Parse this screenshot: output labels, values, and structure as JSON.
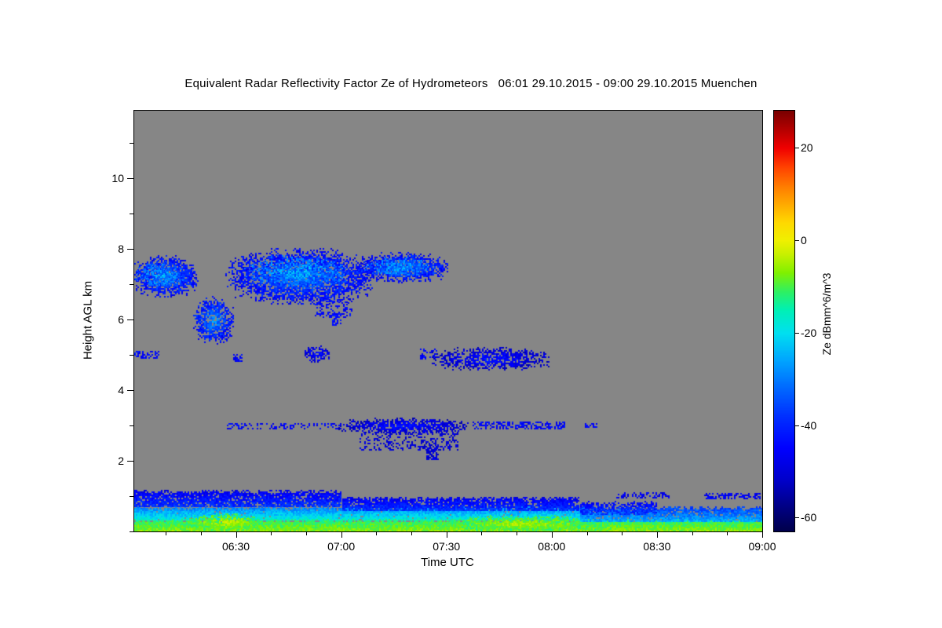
{
  "title": "Equivalent Radar Reflectivity Factor Ze of Hydrometeors   06:01 29.10.2015 - 09:00 29.10.2015 Muenchen",
  "chart_data": {
    "type": "heatmap",
    "title": "Equivalent Radar Reflectivity Factor Ze of Hydrometeors   06:01 29.10.2015 - 09:00 29.10.2015 Muenchen",
    "xlabel": "Time UTC",
    "ylabel": "Height AGL km",
    "colorbar_label": "Ze dBmm^6/m^3",
    "station": "Muenchen",
    "time_start": "06:01 29.10.2015",
    "time_end": "09:00 29.10.2015",
    "x_range_hours": [
      6.017,
      9.0
    ],
    "y_range_km": [
      0,
      11.9
    ],
    "value_range": [
      -63,
      28
    ],
    "background_color": "#868686",
    "x_ticks": [
      {
        "t": 6.5,
        "label": "06:30"
      },
      {
        "t": 7.0,
        "label": "07:00"
      },
      {
        "t": 7.5,
        "label": "07:30"
      },
      {
        "t": 8.0,
        "label": "08:00"
      },
      {
        "t": 8.5,
        "label": "08:30"
      },
      {
        "t": 9.0,
        "label": "09:00"
      }
    ],
    "x_minor_step_min": 10,
    "y_ticks": [
      {
        "z": 2,
        "label": "2"
      },
      {
        "z": 4,
        "label": "4"
      },
      {
        "z": 6,
        "label": "6"
      },
      {
        "z": 8,
        "label": "8"
      },
      {
        "z": 10,
        "label": "10"
      }
    ],
    "y_minor_step_km": 1,
    "colorbar_ticks": [
      {
        "v": 20,
        "label": "20"
      },
      {
        "v": 0,
        "label": "0"
      },
      {
        "v": -20,
        "label": "-20"
      },
      {
        "v": -40,
        "label": "-40"
      },
      {
        "v": -60,
        "label": "-60"
      }
    ],
    "colormap": [
      [
        -63,
        "#00004a"
      ],
      [
        -58,
        "#000080"
      ],
      [
        -52,
        "#0000c8"
      ],
      [
        -45,
        "#0000ff"
      ],
      [
        -38,
        "#0030ff"
      ],
      [
        -32,
        "#0068ff"
      ],
      [
        -26,
        "#00a4ff"
      ],
      [
        -20,
        "#00e0f0"
      ],
      [
        -15,
        "#00f0b4"
      ],
      [
        -11,
        "#30f060"
      ],
      [
        -7,
        "#80f000"
      ],
      [
        -3,
        "#c8f000"
      ],
      [
        0,
        "#f0f000"
      ],
      [
        4,
        "#ffd800"
      ],
      [
        8,
        "#ffa800"
      ],
      [
        12,
        "#ff7800"
      ],
      [
        16,
        "#ff4000"
      ],
      [
        20,
        "#f00000"
      ],
      [
        24,
        "#b40000"
      ],
      [
        28,
        "#7a0000"
      ]
    ],
    "features": [
      {
        "type": "blob",
        "name": "upper-cloud-left",
        "t": [
          6.017,
          6.31
        ],
        "z": [
          6.7,
          7.75
        ],
        "core": -30,
        "edge": -45,
        "density": 0.95,
        "jitter": 5
      },
      {
        "type": "blob",
        "name": "upper-cloud-left-core",
        "t": [
          6.03,
          6.25
        ],
        "z": [
          6.95,
          7.6
        ],
        "core": -24,
        "edge": -34,
        "density": 0.6,
        "jitter": 5
      },
      {
        "type": "speckle",
        "name": "upper-left-dot",
        "t": [
          6.225,
          6.3
        ],
        "z": [
          7.15,
          7.4
        ],
        "v": -40,
        "density": 0.5,
        "jitter": 4
      },
      {
        "type": "blob",
        "name": "teardrop-cloud",
        "t": [
          6.3,
          6.48
        ],
        "z": [
          5.35,
          6.6
        ],
        "core": -27,
        "edge": -45,
        "density": 0.9,
        "jitter": 5
      },
      {
        "type": "blob",
        "name": "main-upper-cloud",
        "t": [
          6.46,
          7.14
        ],
        "z": [
          6.5,
          7.95
        ],
        "core": -30,
        "edge": -46,
        "density": 0.95,
        "jitter": 5
      },
      {
        "type": "blob",
        "name": "main-upper-cloud-core",
        "t": [
          6.55,
          7.02
        ],
        "z": [
          6.95,
          7.8
        ],
        "core": -23,
        "edge": -33,
        "density": 0.55,
        "jitter": 5
      },
      {
        "type": "speckle",
        "name": "cloud-wisps",
        "t": [
          6.87,
          7.05
        ],
        "z": [
          6.05,
          6.6
        ],
        "v": -44,
        "density": 0.3,
        "jitter": 4
      },
      {
        "type": "speckle",
        "name": "wisp-dot",
        "t": [
          6.95,
          7.0
        ],
        "z": [
          5.85,
          6.2
        ],
        "v": -43,
        "density": 0.45,
        "jitter": 3
      },
      {
        "type": "blob",
        "name": "upper-cloud-b",
        "t": [
          7.07,
          7.5
        ],
        "z": [
          7.1,
          7.85
        ],
        "core": -30,
        "edge": -45,
        "density": 0.95,
        "jitter": 5
      },
      {
        "type": "blob",
        "name": "upper-cloud-b-core",
        "t": [
          7.12,
          7.42
        ],
        "z": [
          7.25,
          7.75
        ],
        "core": -25,
        "edge": -33,
        "density": 0.55,
        "jitter": 5
      },
      {
        "type": "speckle",
        "name": "cloud-connector",
        "t": [
          7.0,
          7.1
        ],
        "z": [
          7.3,
          7.5
        ],
        "v": -40,
        "density": 0.5,
        "jitter": 4
      },
      {
        "type": "speckle",
        "name": "5km-left-dots",
        "t": [
          6.017,
          6.13
        ],
        "z": [
          4.9,
          5.15
        ],
        "v": -44,
        "density": 0.45,
        "jitter": 4
      },
      {
        "type": "speckle",
        "name": "5km-dot",
        "t": [
          6.48,
          6.53
        ],
        "z": [
          4.8,
          5.05
        ],
        "v": -45,
        "density": 0.5,
        "jitter": 4
      },
      {
        "type": "blob",
        "name": "5km-blob",
        "t": [
          6.82,
          6.94
        ],
        "z": [
          4.8,
          5.25
        ],
        "core": -42,
        "edge": -50,
        "density": 0.7,
        "jitter": 4
      },
      {
        "type": "speckle",
        "name": "5km-predots",
        "t": [
          7.37,
          7.45
        ],
        "z": [
          4.9,
          5.2
        ],
        "v": -45,
        "density": 0.45,
        "jitter": 4
      },
      {
        "type": "blob",
        "name": "5km-band",
        "t": [
          7.44,
          7.98
        ],
        "z": [
          4.6,
          5.2
        ],
        "core": -42,
        "edge": -52,
        "density": 0.8,
        "jitter": 4
      },
      {
        "type": "speckle",
        "name": "3km-dotline",
        "t": [
          6.45,
          7.0
        ],
        "z": [
          2.92,
          3.1
        ],
        "v": -45,
        "density": 0.3,
        "jitter": 4
      },
      {
        "type": "blob",
        "name": "3km-band",
        "t": [
          6.99,
          7.6
        ],
        "z": [
          2.8,
          3.2
        ],
        "core": -42,
        "edge": -52,
        "density": 0.85,
        "jitter": 4
      },
      {
        "type": "speckle",
        "name": "3km-hanging-streaks",
        "t": [
          7.08,
          7.55
        ],
        "z": [
          2.3,
          2.85
        ],
        "v": -50,
        "density": 0.28,
        "jitter": 3
      },
      {
        "type": "speckle",
        "name": "3km-spike",
        "t": [
          7.4,
          7.46
        ],
        "z": [
          2.05,
          2.5
        ],
        "v": -50,
        "density": 0.55,
        "jitter": 3
      },
      {
        "type": "speckle",
        "name": "3km-right-dots",
        "t": [
          7.62,
          8.06
        ],
        "z": [
          2.9,
          3.15
        ],
        "v": -45,
        "density": 0.5,
        "jitter": 4
      },
      {
        "type": "speckle",
        "name": "3km-dash",
        "t": [
          8.15,
          8.21
        ],
        "z": [
          2.95,
          3.1
        ],
        "v": -45,
        "density": 0.55,
        "jitter": 3
      },
      {
        "type": "layer",
        "name": "boundary-mid-green",
        "t": [
          6.017,
          8.17
        ],
        "z": [
          0.33,
          0.75
        ],
        "v": [
          -31,
          -17
        ],
        "density": 0.97,
        "jitter": 4
      },
      {
        "type": "layer",
        "name": "boundary-bottom-yellow",
        "t": [
          6.017,
          9.0
        ],
        "z": [
          0.0,
          0.38
        ],
        "v": [
          -13,
          -6
        ],
        "density": 1,
        "jitter": 3
      },
      {
        "type": "blob",
        "name": "yellow-patch-1",
        "t": [
          6.28,
          6.62
        ],
        "z": [
          0.05,
          0.5
        ],
        "core": -3,
        "edge": -11,
        "density": 0.9,
        "jitter": 3
      },
      {
        "type": "blob",
        "name": "yellow-patch-2",
        "t": [
          7.5,
          8.22
        ],
        "z": [
          0.02,
          0.45
        ],
        "core": -4,
        "edge": -12,
        "density": 0.9,
        "jitter": 3
      },
      {
        "type": "layer",
        "name": "right-cyan-layer",
        "t": [
          8.13,
          9.0
        ],
        "z": [
          0.28,
          0.75
        ],
        "v": [
          -38,
          -24
        ],
        "density": 0.9,
        "jitter": 4
      },
      {
        "type": "layer",
        "name": "boundary-dark-1",
        "t": [
          6.017,
          7.0
        ],
        "z": [
          0.72,
          1.22
        ],
        "v": [
          -48,
          -38
        ],
        "density": 0.85,
        "jitter": 4
      },
      {
        "type": "layer",
        "name": "boundary-dark-2",
        "t": [
          7.0,
          8.13
        ],
        "z": [
          0.62,
          1.02
        ],
        "v": [
          -48,
          -38
        ],
        "density": 0.85,
        "jitter": 4
      },
      {
        "type": "layer",
        "name": "right-blue-patch",
        "t": [
          8.13,
          8.5
        ],
        "z": [
          0.5,
          0.9
        ],
        "v": [
          -46,
          -38
        ],
        "density": 0.6,
        "jitter": 4
      },
      {
        "type": "speckle",
        "name": "right-speckle-1",
        "t": [
          8.3,
          8.56
        ],
        "z": [
          0.95,
          1.15
        ],
        "v": -47,
        "density": 0.35,
        "jitter": 4
      },
      {
        "type": "speckle",
        "name": "right-speckle-2",
        "t": [
          8.72,
          8.99
        ],
        "z": [
          0.92,
          1.13
        ],
        "v": -46,
        "density": 0.5,
        "jitter": 4
      }
    ]
  }
}
